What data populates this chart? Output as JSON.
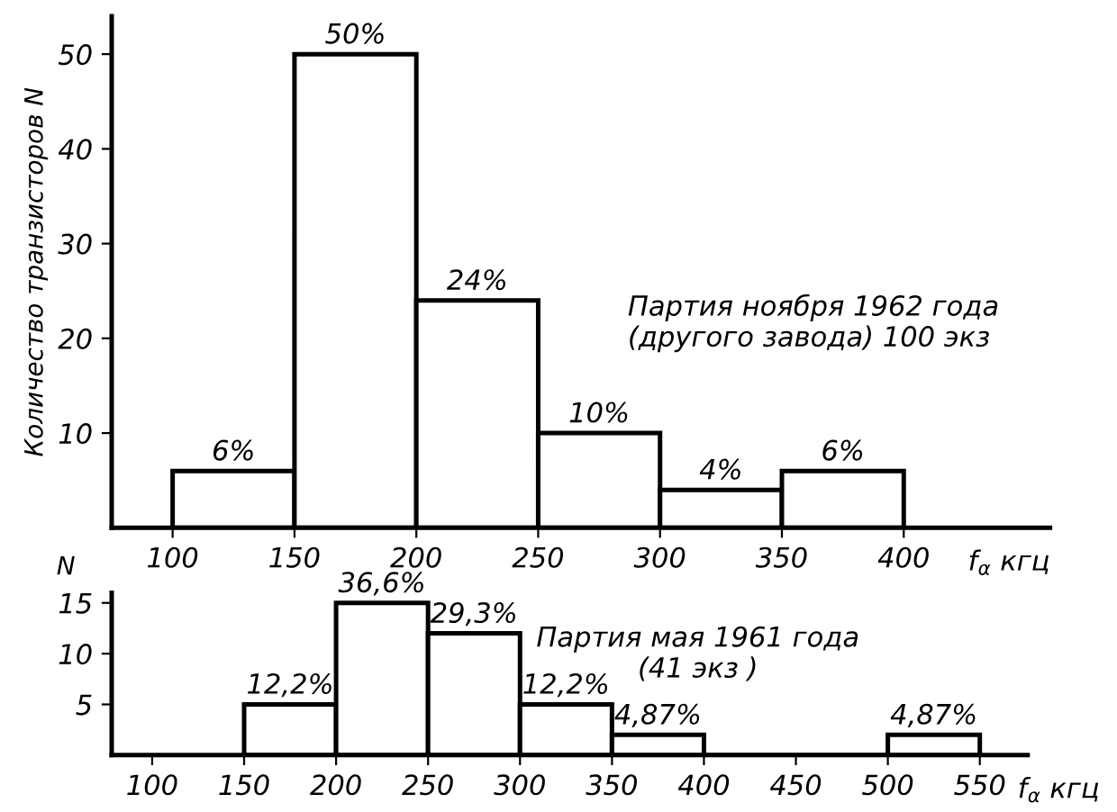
{
  "chart_data": [
    {
      "type": "histogram",
      "ylabel": "Количество транзисторов N",
      "xlabel": "f$_{α}$ кгц",
      "bins": [
        100,
        150,
        200,
        250,
        300,
        350,
        400
      ],
      "values": [
        6,
        50,
        24,
        10,
        4,
        6
      ],
      "value_labels": [
        "6%",
        "50%",
        "24%",
        "10%",
        "4%",
        "6%"
      ],
      "xlim": [
        75,
        460
      ],
      "xticks": [
        100,
        150,
        200,
        250,
        300,
        350,
        400
      ],
      "ylim": [
        0,
        54
      ],
      "yticks": [
        10,
        20,
        30,
        40,
        50
      ],
      "annotations": [
        "Партия ноября 1962 года\n(другого завода) 100 экз"
      ],
      "grid": false
    },
    {
      "type": "histogram",
      "ylabel": "N",
      "xlabel": "f$_{α}$ кгц",
      "bins": [
        150,
        200,
        250,
        300,
        350,
        400,
        450,
        500,
        550
      ],
      "values": [
        5,
        15,
        12,
        5,
        2,
        0,
        0,
        2
      ],
      "xlim": [
        78,
        576
      ],
      "xticks": [
        100,
        150,
        200,
        250,
        300,
        350,
        400,
        450,
        500,
        550
      ],
      "ylim": [
        0,
        16
      ],
      "yticks": [
        5,
        10,
        15
      ],
      "annotations": [
        "Партия мая 1961 года\n(41 экз )",
        {
          "text": "12,2%",
          "x": 175,
          "y": 5
        },
        {
          "text": "36,6%",
          "x": 225,
          "y": 15
        },
        {
          "text": "29,3%",
          "x": 275,
          "y": 12
        },
        {
          "text": "12,2%",
          "x": 325,
          "y": 5
        },
        {
          "text": "4,87%",
          "x": 375,
          "y": 2
        },
        {
          "text": "4,87%",
          "x": 525,
          "y": 2
        }
      ],
      "grid": false
    }
  ]
}
